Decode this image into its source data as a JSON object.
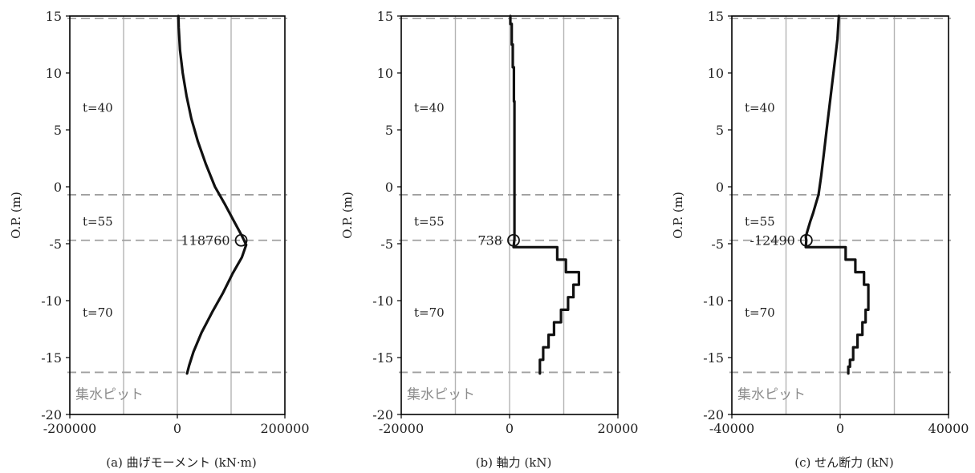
{
  "chart_data": [
    {
      "type": "line",
      "caption": "(a) 曲げモーメント (kN·m)",
      "ylabel": "O.P. (m)",
      "xlim": [
        -200000,
        200000
      ],
      "ylim": [
        -20,
        15
      ],
      "x_ticks": [
        "-200000",
        "0",
        "200000"
      ],
      "y_ticks": [
        "15",
        "10",
        "5",
        "0",
        "-5",
        "-10",
        "-15",
        "-20"
      ],
      "grid": true,
      "dashed_levels": [
        14.8,
        -0.7,
        -4.7,
        -16.3
      ],
      "zones": [
        {
          "label": "t=40",
          "y": 7.0
        },
        {
          "label": "t=55",
          "y": -3.0
        },
        {
          "label": "t=70",
          "y": -11.0
        }
      ],
      "pit_label": "集水ピット",
      "series": [
        {
          "x": [
            2000,
            2500,
            5000,
            10000,
            17000,
            26000,
            38000,
            53000,
            70000,
            88000,
            105000,
            120000,
            128000,
            120000,
            103000,
            85000,
            65000,
            45000,
            30000,
            22000,
            18000
          ],
          "y": [
            15,
            14,
            12,
            10,
            8,
            6,
            4,
            2,
            0,
            -1.5,
            -3,
            -4.3,
            -5.1,
            -6.2,
            -7.6,
            -9.3,
            -11,
            -12.8,
            -14.5,
            -15.7,
            -16.4
          ]
        }
      ],
      "marker": {
        "x": 118760,
        "y": -4.7,
        "label": "118760"
      }
    },
    {
      "type": "line",
      "caption": "(b) 軸力 (kN)",
      "ylabel": "O.P. (m)",
      "xlim": [
        -20000,
        20000
      ],
      "ylim": [
        -20,
        15
      ],
      "x_ticks": [
        "-20000",
        "0",
        "20000"
      ],
      "y_ticks": [
        "15",
        "10",
        "5",
        "0",
        "-5",
        "-10",
        "-15",
        "-20"
      ],
      "grid": true,
      "dashed_levels": [
        14.8,
        -0.7,
        -4.7,
        -16.3
      ],
      "zones": [
        {
          "label": "t=40",
          "y": 7.0
        },
        {
          "label": "t=55",
          "y": -3.0
        },
        {
          "label": "t=70",
          "y": -11.0
        }
      ],
      "pit_label": "集水ピット",
      "series": [
        {
          "x": [
            150,
            150,
            400,
            400,
            600,
            600,
            800,
            800,
            900,
            900,
            738,
            8800,
            8800,
            10400,
            10400,
            12800,
            12800,
            11800,
            11800,
            10800,
            10800,
            9500,
            9500,
            8200,
            8200,
            7200,
            7200,
            6200,
            6200,
            5600,
            5600
          ],
          "y": [
            15,
            14.3,
            14.3,
            12.5,
            12.5,
            10.5,
            10.5,
            7.5,
            7.5,
            -4.6,
            -5.3,
            -5.3,
            -6.4,
            -6.4,
            -7.5,
            -7.5,
            -8.6,
            -8.6,
            -9.7,
            -9.7,
            -10.8,
            -10.8,
            -11.9,
            -11.9,
            -13.0,
            -13.0,
            -14.1,
            -14.1,
            -15.2,
            -15.2,
            -16.4
          ]
        }
      ],
      "marker": {
        "x": 738,
        "y": -4.7,
        "label": "738"
      }
    },
    {
      "type": "line",
      "caption": "(c) せん断力 (kN)",
      "ylabel": "O.P. (m)",
      "xlim": [
        -40000,
        40000
      ],
      "ylim": [
        -20,
        15
      ],
      "x_ticks": [
        "-40000",
        "0",
        "40000"
      ],
      "y_ticks": [
        "15",
        "10",
        "5",
        "0",
        "-5",
        "-10",
        "-15",
        "-20"
      ],
      "grid": true,
      "dashed_levels": [
        14.8,
        -0.7,
        -4.7,
        -16.3
      ],
      "zones": [
        {
          "label": "t=40",
          "y": 7.0
        },
        {
          "label": "t=55",
          "y": -3.0
        },
        {
          "label": "t=70",
          "y": -11.0
        }
      ],
      "pit_label": "集水ピット",
      "series": [
        {
          "x": [
            -500,
            -1000,
            -2000,
            -3000,
            -4000,
            -5000,
            -6000,
            -7000,
            -8000,
            -9000,
            -10000,
            -11000,
            -12000,
            -12700,
            -12490,
            -12700,
            2000,
            2000,
            5600,
            5600,
            8800,
            8800,
            10400,
            10400,
            9400,
            9400,
            8200,
            8200,
            6400,
            6400,
            4800,
            4800,
            3600,
            3600,
            3000,
            3000
          ],
          "y": [
            15,
            13,
            11,
            9,
            7,
            5,
            3,
            1,
            -0.7,
            -1.5,
            -2.3,
            -3.0,
            -3.8,
            -4.4,
            -4.7,
            -5.3,
            -5.3,
            -6.4,
            -6.4,
            -7.5,
            -7.5,
            -8.6,
            -8.6,
            -10.8,
            -10.8,
            -11.9,
            -11.9,
            -13.0,
            -13.0,
            -14.1,
            -14.1,
            -15.2,
            -15.2,
            -15.8,
            -15.8,
            -16.4
          ]
        }
      ],
      "marker": {
        "x": -12490,
        "y": -4.7,
        "label": "-12490"
      }
    }
  ]
}
